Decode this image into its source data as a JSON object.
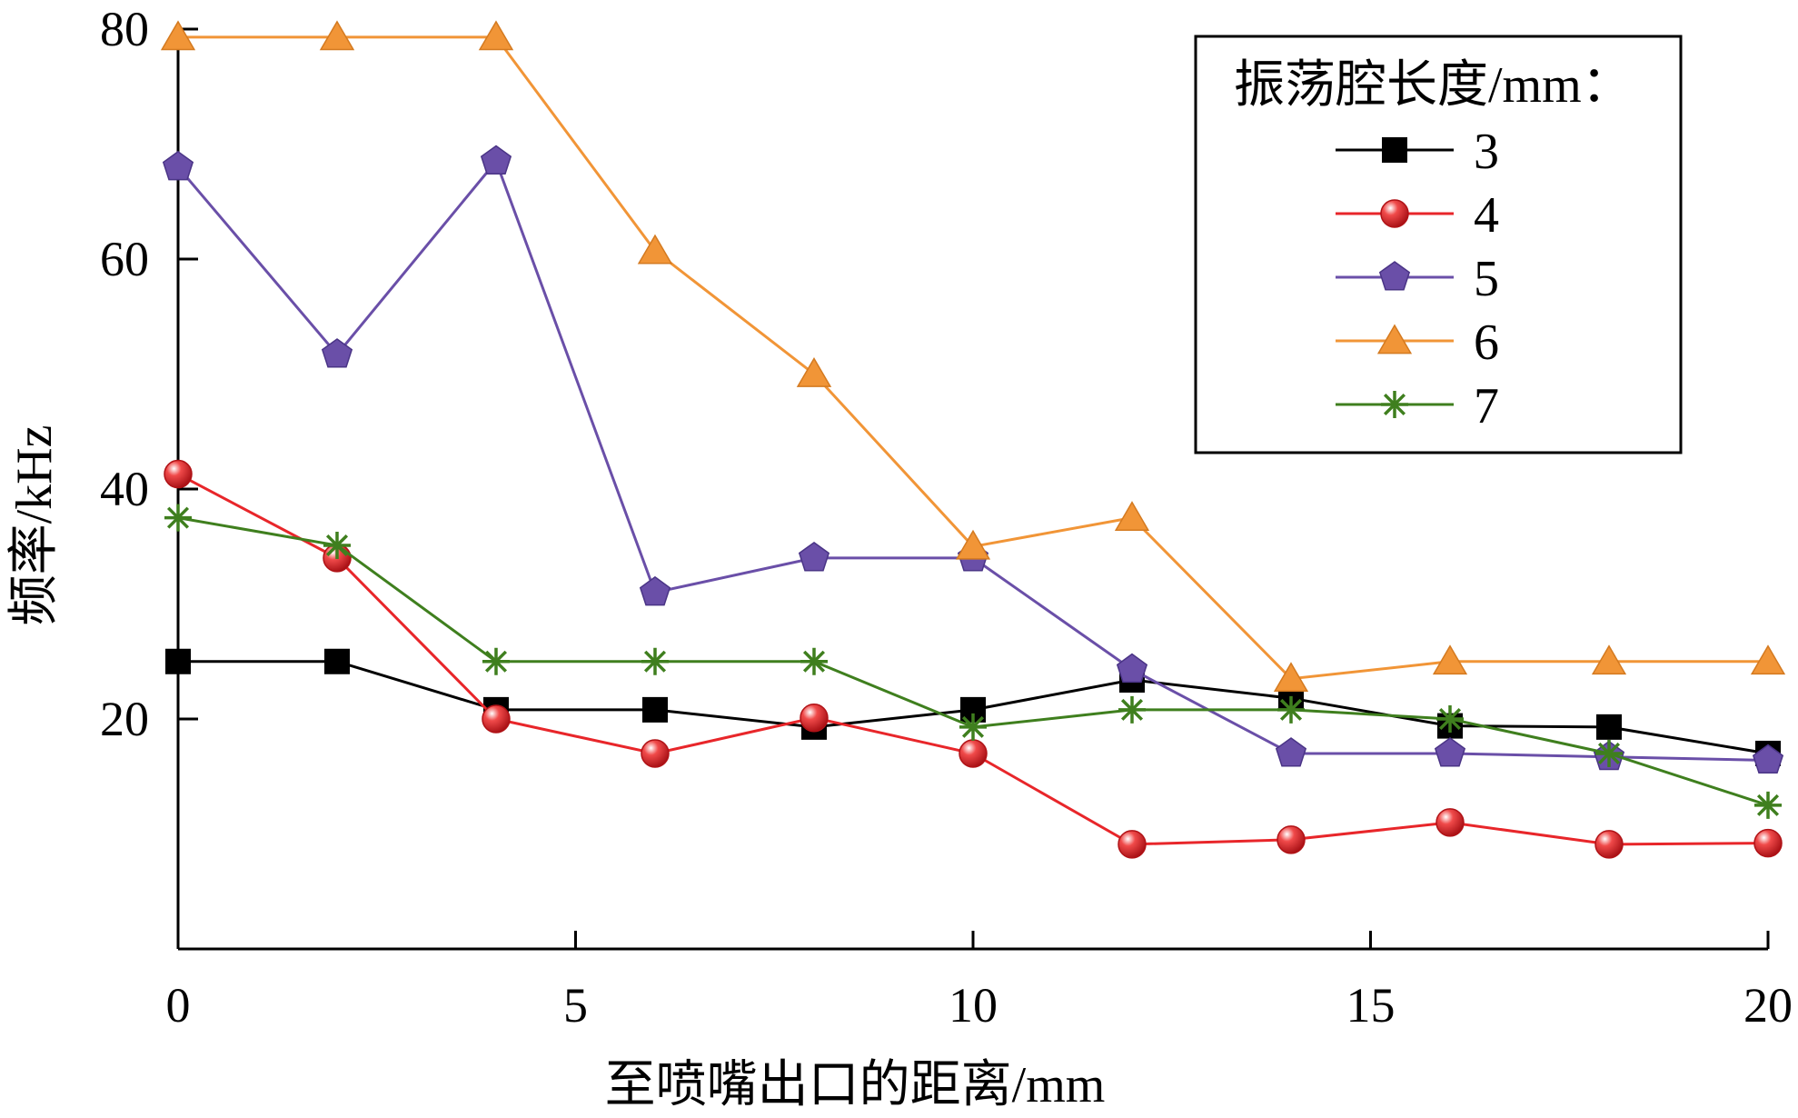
{
  "chart_data": {
    "type": "line",
    "xlabel": "至喷嘴出口的距离/mm",
    "ylabel": "频率/kHz",
    "xlim": [
      0,
      20
    ],
    "ylim": [
      0,
      80
    ],
    "x_ticks": [
      0,
      5,
      10,
      15,
      20
    ],
    "y_ticks": [
      20,
      40,
      60,
      80
    ],
    "grid": false,
    "legend": {
      "title": "振荡腔长度/mm：",
      "position": "top-right"
    },
    "x": [
      0,
      2,
      4,
      6,
      8,
      10,
      12,
      14,
      16,
      18,
      20
    ],
    "series": [
      {
        "name": "3",
        "color": "#000000",
        "marker": "square",
        "values": [
          25,
          25,
          20.8,
          20.8,
          19.3,
          20.8,
          23.4,
          21.8,
          19.4,
          19.3,
          17
        ]
      },
      {
        "name": "4",
        "color": "#e8262a",
        "marker": "sphere",
        "values": [
          41.3,
          34,
          20,
          17,
          20.1,
          17,
          9.1,
          9.5,
          11,
          9.1,
          9.2
        ]
      },
      {
        "name": "5",
        "color": "#6a4fa8",
        "marker": "pentagon",
        "values": [
          68,
          51.7,
          68.5,
          31,
          34,
          34,
          24.3,
          17,
          17,
          16.7,
          16.4
        ]
      },
      {
        "name": "6",
        "color": "#f19537",
        "marker": "triangle",
        "values": [
          79.3,
          79.3,
          79.3,
          60.7,
          50,
          35,
          37.5,
          23.5,
          25,
          25,
          25
        ]
      },
      {
        "name": "7",
        "color": "#3f7f1e",
        "marker": "asterisk",
        "values": [
          37.5,
          35.1,
          25,
          25,
          25,
          19.3,
          20.8,
          20.8,
          20,
          17,
          12.5
        ]
      }
    ]
  }
}
